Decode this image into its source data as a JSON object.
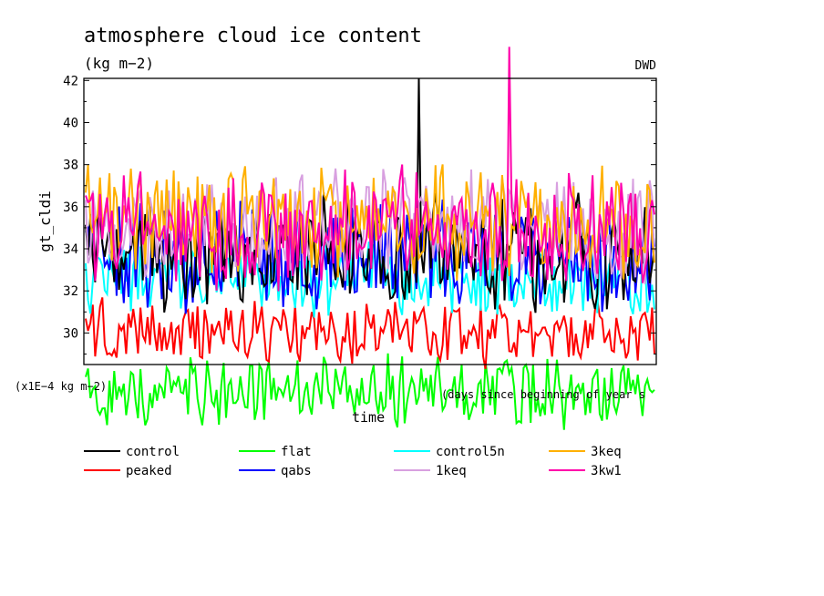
{
  "title": "atmosphere cloud ice content",
  "subtitle": "(kg m−2)",
  "source": "DWD",
  "scale_note": "(x1E−4 kg m−2)",
  "chart_data": {
    "type": "line",
    "title": "atmosphere cloud ice content",
    "units": "(kg m−2)",
    "multiplier": "(x1E−4 kg m−2)",
    "xlabel": "time",
    "xlabel_note": "(days since beginning of year s",
    "ylabel": "gt_cldi",
    "ylim": [
      28.5,
      42.1
    ],
    "xlim": [
      0,
      1
    ],
    "y_ticks": [
      30,
      32,
      34,
      36,
      38,
      40,
      42
    ],
    "grid": false,
    "legend_position": "bottom",
    "series": [
      {
        "name": "control",
        "color": "#000000",
        "mean": 33.8,
        "amp": 2.3,
        "spike": 42.1
      },
      {
        "name": "peaked",
        "color": "#ff0000",
        "mean": 30.0,
        "amp": 1.3
      },
      {
        "name": "flat",
        "color": "#00ff00",
        "mean": 27.2,
        "amp": 1.4
      },
      {
        "name": "qabs",
        "color": "#0000ff",
        "mean": 33.6,
        "amp": 2.1
      },
      {
        "name": "control5n",
        "color": "#00ffff",
        "mean": 32.5,
        "amp": 1.5
      },
      {
        "name": "1keq",
        "color": "#d8a0e0",
        "mean": 35.0,
        "amp": 2.2
      },
      {
        "name": "3keq",
        "color": "#ffb000",
        "mean": 35.3,
        "amp": 2.2
      },
      {
        "name": "3kw1",
        "color": "#ff00aa",
        "mean": 35.0,
        "amp": 2.4,
        "spike": 43.6
      }
    ]
  }
}
